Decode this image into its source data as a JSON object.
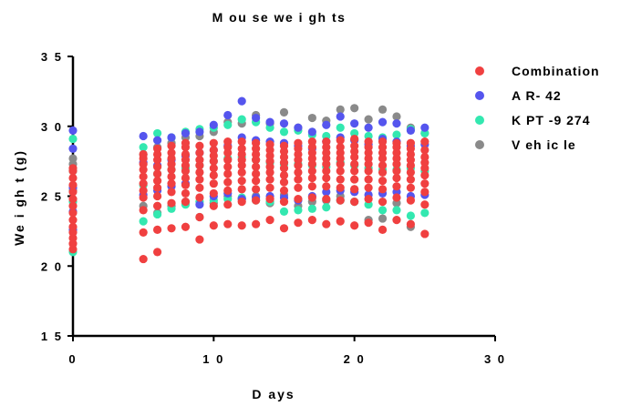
{
  "chart_data": {
    "type": "scatter",
    "title": "M ou se  we i gh ts",
    "xlabel": "D ays",
    "ylabel": "We i gh t (g)",
    "xlim": [
      0,
      30
    ],
    "ylim": [
      15,
      35
    ],
    "xticks": [
      0,
      10,
      20,
      30
    ],
    "xtick_labels": [
      "0",
      "1 0",
      "2 0",
      "3 0"
    ],
    "yticks": [
      15,
      20,
      25,
      30,
      35
    ],
    "ytick_labels": [
      "1 5",
      "2 0",
      "2 5",
      "3 0",
      "3 5"
    ],
    "grid": false,
    "legend_position": "top-right",
    "series": [
      {
        "name": "Combination",
        "color": "#f04040",
        "x": [
          0,
          0,
          0,
          0,
          0,
          0,
          0,
          0,
          0,
          0,
          0,
          0,
          0,
          0,
          5,
          5,
          5,
          5,
          5,
          5,
          5,
          5,
          5,
          5,
          5,
          6,
          6,
          6,
          6,
          6,
          6,
          6,
          6,
          6,
          6,
          6,
          7,
          7,
          7,
          7,
          7,
          7,
          7,
          7,
          7,
          7,
          8,
          8,
          8,
          8,
          8,
          8,
          8,
          8,
          8,
          8,
          8,
          9,
          9,
          9,
          9,
          9,
          9,
          9,
          9,
          9,
          9,
          10,
          10,
          10,
          10,
          10,
          10,
          10,
          10,
          10,
          10,
          11,
          11,
          11,
          11,
          11,
          11,
          11,
          11,
          11,
          11,
          12,
          12,
          12,
          12,
          12,
          12,
          12,
          12,
          12,
          12,
          13,
          13,
          13,
          13,
          13,
          13,
          13,
          13,
          13,
          13,
          14,
          14,
          14,
          14,
          14,
          14,
          14,
          14,
          14,
          14,
          15,
          15,
          15,
          15,
          15,
          15,
          15,
          15,
          15,
          15,
          16,
          16,
          16,
          16,
          16,
          16,
          16,
          16,
          16,
          16,
          17,
          17,
          17,
          17,
          17,
          17,
          17,
          17,
          17,
          17,
          18,
          18,
          18,
          18,
          18,
          18,
          18,
          18,
          18,
          18,
          19,
          19,
          19,
          19,
          19,
          19,
          19,
          19,
          19,
          19,
          20,
          20,
          20,
          20,
          20,
          20,
          20,
          20,
          20,
          20,
          21,
          21,
          21,
          21,
          21,
          21,
          21,
          21,
          21,
          21,
          22,
          22,
          22,
          22,
          22,
          22,
          22,
          22,
          22,
          22,
          23,
          23,
          23,
          23,
          23,
          23,
          23,
          23,
          23,
          23,
          24,
          24,
          24,
          24,
          24,
          24,
          24,
          24,
          24,
          24,
          25,
          25,
          25,
          25,
          25,
          25,
          25,
          25,
          25,
          25
        ],
        "y": [
          21.2,
          21.6,
          22.0,
          22.4,
          22.8,
          23.3,
          23.8,
          24.3,
          24.8,
          25.3,
          25.8,
          26.3,
          26.8,
          27.0,
          20.5,
          22.4,
          24.0,
          24.9,
          25.4,
          25.9,
          26.4,
          26.9,
          27.3,
          27.7,
          28.0,
          21.0,
          22.6,
          24.3,
          25.0,
          25.6,
          26.1,
          26.6,
          27.1,
          27.6,
          28.0,
          28.4,
          22.7,
          24.5,
          25.3,
          25.9,
          26.4,
          26.9,
          27.3,
          27.7,
          28.1,
          28.6,
          22.8,
          24.6,
          25.2,
          25.8,
          26.3,
          26.8,
          27.2,
          27.6,
          28.0,
          28.5,
          28.8,
          21.9,
          23.5,
          24.9,
          25.6,
          26.2,
          26.7,
          27.2,
          27.6,
          28.1,
          28.6,
          22.9,
          24.3,
          25.2,
          25.9,
          26.5,
          27.0,
          27.5,
          27.9,
          28.3,
          28.8,
          23.0,
          24.4,
          25.4,
          26.0,
          26.6,
          27.1,
          27.6,
          28.1,
          28.5,
          28.9,
          22.9,
          24.6,
          25.5,
          26.1,
          26.7,
          27.2,
          27.6,
          28.0,
          28.4,
          28.9,
          23.0,
          24.7,
          25.5,
          26.1,
          26.6,
          27.1,
          27.6,
          28.0,
          28.4,
          28.8,
          23.3,
          24.8,
          25.6,
          26.2,
          26.7,
          27.1,
          27.5,
          27.9,
          28.3,
          28.7,
          22.7,
          24.6,
          25.4,
          26.0,
          26.5,
          27.0,
          27.4,
          27.8,
          28.2,
          28.6,
          23.1,
          24.8,
          25.6,
          26.2,
          26.7,
          27.2,
          27.6,
          28.0,
          28.4,
          28.8,
          23.3,
          24.9,
          25.7,
          26.3,
          26.8,
          27.3,
          27.7,
          28.1,
          28.5,
          28.9,
          23.0,
          24.8,
          25.7,
          26.3,
          26.8,
          27.3,
          27.7,
          28.1,
          28.5,
          28.9,
          23.2,
          24.7,
          25.6,
          26.2,
          26.8,
          27.3,
          27.7,
          28.1,
          28.5,
          29.0,
          22.9,
          24.6,
          25.5,
          26.2,
          26.8,
          27.3,
          27.8,
          28.2,
          28.6,
          29.1,
          23.1,
          24.8,
          25.6,
          26.2,
          26.8,
          27.3,
          27.7,
          28.1,
          28.5,
          28.9,
          22.6,
          24.6,
          25.5,
          26.1,
          26.7,
          27.2,
          27.7,
          28.1,
          28.5,
          28.9,
          23.3,
          24.9,
          25.7,
          26.3,
          26.8,
          27.3,
          27.7,
          28.1,
          28.5,
          28.8,
          23.0,
          24.7,
          25.6,
          26.2,
          26.7,
          27.2,
          27.6,
          28.0,
          28.4,
          28.8,
          22.3,
          24.4,
          25.3,
          25.9,
          26.5,
          27.0,
          27.4,
          27.8,
          28.3,
          28.9
        ]
      },
      {
        "name": "A R- 42",
        "color": "#5555ee",
        "x": [
          0,
          0,
          0,
          0,
          0,
          5,
          5,
          5,
          6,
          6,
          6,
          7,
          7,
          7,
          8,
          8,
          8,
          9,
          9,
          9,
          10,
          10,
          10,
          11,
          11,
          11,
          12,
          12,
          12,
          13,
          13,
          13,
          14,
          14,
          14,
          15,
          15,
          15,
          16,
          16,
          16,
          17,
          17,
          17,
          18,
          18,
          18,
          19,
          19,
          19,
          20,
          20,
          20,
          21,
          21,
          21,
          22,
          22,
          22,
          23,
          23,
          23,
          24,
          24,
          24,
          25,
          25,
          25
        ],
        "y": [
          29.7,
          28.4,
          25.6,
          23.9,
          22.6,
          29.3,
          27.4,
          25.1,
          29.0,
          27.2,
          25.4,
          29.2,
          27.6,
          25.7,
          29.5,
          27.9,
          25.9,
          29.6,
          28.1,
          24.4,
          30.1,
          28.3,
          25.0,
          30.8,
          28.6,
          25.2,
          31.8,
          29.2,
          24.8,
          30.6,
          29.0,
          24.9,
          30.3,
          28.9,
          25.0,
          30.2,
          28.8,
          24.9,
          29.9,
          28.6,
          24.7,
          29.6,
          28.4,
          25.0,
          30.1,
          28.9,
          25.3,
          30.7,
          29.2,
          25.4,
          30.2,
          29.0,
          25.3,
          29.9,
          28.7,
          25.1,
          30.3,
          29.1,
          25.2,
          30.2,
          28.9,
          25.3,
          29.7,
          28.6,
          25.0,
          29.9,
          28.7,
          25.1
        ]
      },
      {
        "name": "K PT -9 274",
        "color": "#33e8b0",
        "x": [
          0,
          0,
          0,
          0,
          5,
          5,
          5,
          6,
          6,
          6,
          7,
          7,
          7,
          8,
          8,
          8,
          9,
          9,
          9,
          10,
          10,
          10,
          11,
          11,
          11,
          12,
          12,
          12,
          13,
          13,
          13,
          14,
          14,
          14,
          15,
          15,
          15,
          16,
          16,
          16,
          17,
          17,
          17,
          18,
          18,
          18,
          19,
          19,
          19,
          20,
          20,
          20,
          21,
          21,
          21,
          22,
          22,
          22,
          23,
          23,
          23,
          24,
          24,
          24,
          25,
          25,
          25
        ],
        "y": [
          29.1,
          26.8,
          24.6,
          21.0,
          28.5,
          25.8,
          23.2,
          29.5,
          26.6,
          23.7,
          29.2,
          26.9,
          24.1,
          29.6,
          27.0,
          24.4,
          29.8,
          27.2,
          24.6,
          29.9,
          27.5,
          24.7,
          30.1,
          27.7,
          24.8,
          30.5,
          27.8,
          24.9,
          30.3,
          27.6,
          24.7,
          29.9,
          27.4,
          24.6,
          29.6,
          27.3,
          23.9,
          29.7,
          27.3,
          24.0,
          29.4,
          27.2,
          24.1,
          29.3,
          27.1,
          24.2,
          29.9,
          27.4,
          24.7,
          29.5,
          27.2,
          24.6,
          29.3,
          27.0,
          24.4,
          29.2,
          26.9,
          24.0,
          29.4,
          26.9,
          24.0,
          29.8,
          27.0,
          23.6,
          29.5,
          26.8,
          23.8
        ]
      },
      {
        "name": "V eh ic le",
        "color": "#8a8a8a",
        "x": [
          0,
          0,
          0,
          5,
          5,
          6,
          6,
          7,
          7,
          8,
          8,
          9,
          9,
          10,
          10,
          11,
          11,
          12,
          12,
          13,
          13,
          14,
          14,
          15,
          15,
          16,
          16,
          17,
          17,
          18,
          18,
          19,
          19,
          20,
          20,
          21,
          21,
          22,
          22,
          23,
          23,
          24,
          24,
          25
        ],
        "y": [
          27.7,
          27.3,
          25.4,
          28.0,
          24.3,
          28.5,
          23.8,
          28.8,
          24.3,
          29.2,
          24.6,
          29.3,
          23.5,
          29.6,
          24.5,
          30.3,
          25.0,
          30.2,
          24.8,
          30.8,
          25.0,
          30.2,
          24.5,
          31.0,
          25.1,
          29.9,
          24.3,
          30.6,
          24.6,
          30.4,
          24.7,
          31.2,
          25.0,
          31.3,
          25.5,
          30.5,
          23.3,
          31.2,
          23.4,
          30.7,
          24.5,
          29.9,
          22.8,
          29.5
        ]
      }
    ]
  }
}
